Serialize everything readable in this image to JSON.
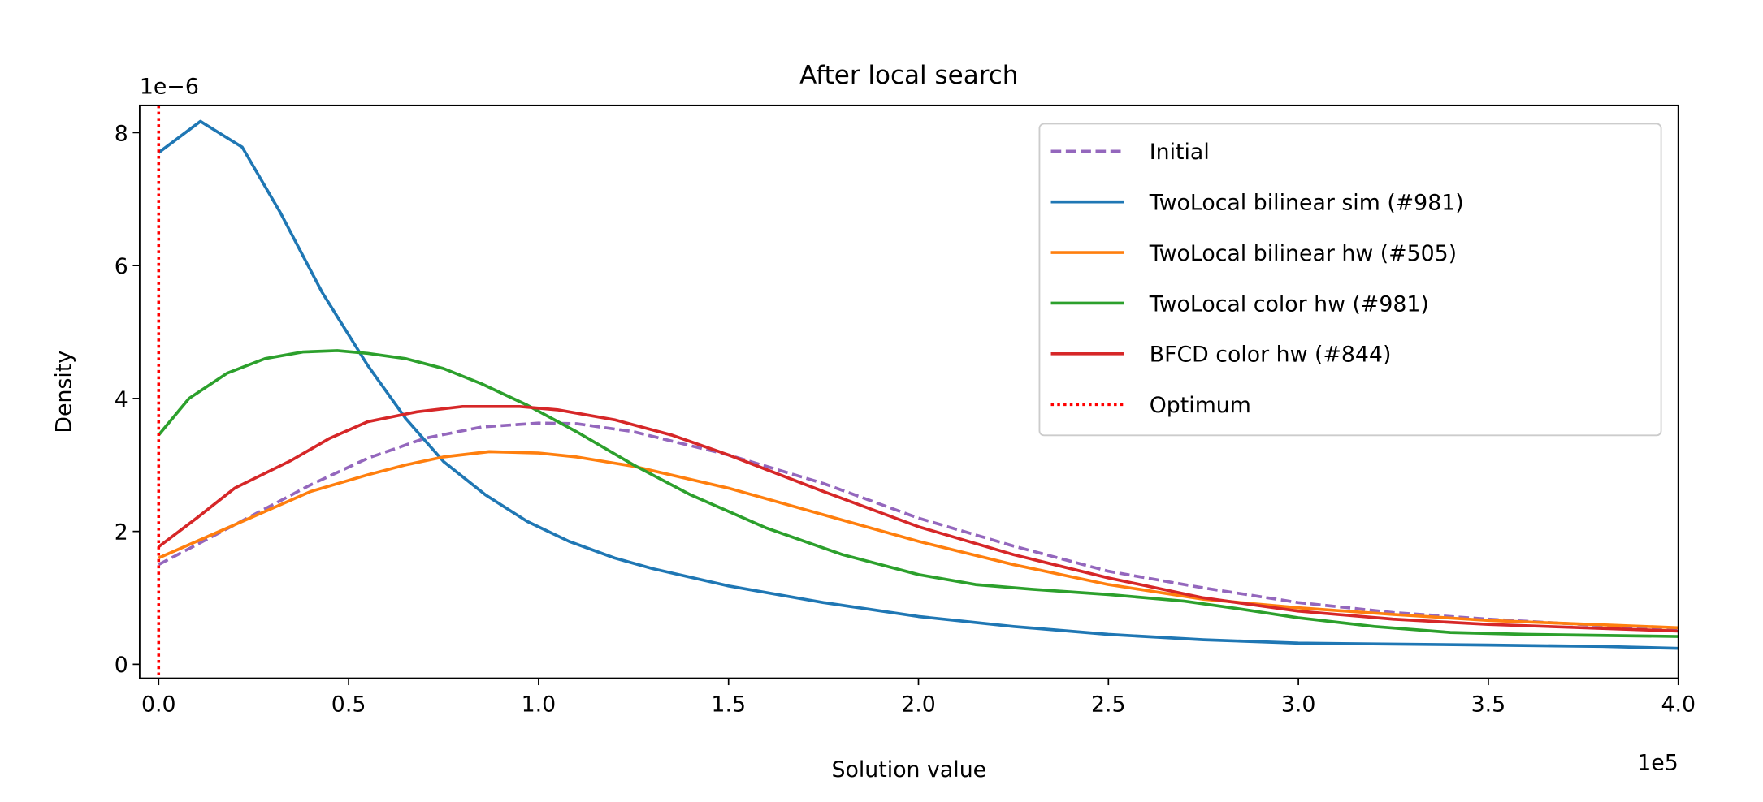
{
  "chart_data": {
    "type": "line",
    "title": "After local search",
    "xlabel": "Solution value",
    "ylabel": "Density",
    "x_offset_label": "1e5",
    "y_offset_label": "1e−6",
    "xlim": [
      -0.05,
      4.0
    ],
    "ylim": [
      -0.21,
      8.41
    ],
    "x_ticks": [
      0.0,
      0.5,
      1.0,
      1.5,
      2.0,
      2.5,
      3.0,
      3.5,
      4.0
    ],
    "x_tick_labels": [
      "0.0",
      "0.5",
      "1.0",
      "1.5",
      "2.0",
      "2.5",
      "3.0",
      "3.5",
      "4.0"
    ],
    "y_ticks": [
      0,
      2,
      4,
      6,
      8
    ],
    "y_tick_labels": [
      "0",
      "2",
      "4",
      "6",
      "8"
    ],
    "grid": false,
    "legend_position": "top-right",
    "series": [
      {
        "name": "Initial",
        "color": "#9467bd",
        "style": "dashed",
        "x": [
          0,
          0.2,
          0.4,
          0.55,
          0.7,
          0.85,
          1.0,
          1.1,
          1.25,
          1.5,
          1.75,
          2.0,
          2.25,
          2.5,
          2.75,
          3.0,
          3.25,
          3.5,
          4.0
        ],
        "y": [
          1.5,
          2.1,
          2.7,
          3.1,
          3.4,
          3.57,
          3.63,
          3.62,
          3.5,
          3.15,
          2.72,
          2.2,
          1.78,
          1.4,
          1.15,
          0.93,
          0.78,
          0.68,
          0.52
        ]
      },
      {
        "name": "TwoLocal bilinear sim (#981)",
        "color": "#1f77b4",
        "style": "solid",
        "x": [
          0,
          0.11,
          0.22,
          0.32,
          0.43,
          0.55,
          0.65,
          0.75,
          0.86,
          0.97,
          1.08,
          1.2,
          1.3,
          1.5,
          1.75,
          2.0,
          2.25,
          2.5,
          2.75,
          3.0,
          3.5,
          3.8,
          4.0
        ],
        "y": [
          7.7,
          8.17,
          7.78,
          6.8,
          5.6,
          4.5,
          3.7,
          3.05,
          2.55,
          2.15,
          1.85,
          1.6,
          1.44,
          1.18,
          0.93,
          0.72,
          0.57,
          0.45,
          0.37,
          0.32,
          0.29,
          0.27,
          0.24
        ]
      },
      {
        "name": "TwoLocal bilinear hw (#505)",
        "color": "#ff7f0e",
        "style": "solid",
        "x": [
          0,
          0.2,
          0.4,
          0.55,
          0.65,
          0.75,
          0.87,
          1.0,
          1.1,
          1.25,
          1.5,
          1.75,
          2.0,
          2.25,
          2.5,
          2.75,
          3.0,
          3.25,
          3.5,
          4.0
        ],
        "y": [
          1.6,
          2.1,
          2.6,
          2.85,
          3.0,
          3.12,
          3.2,
          3.18,
          3.12,
          2.98,
          2.65,
          2.25,
          1.85,
          1.5,
          1.2,
          0.98,
          0.85,
          0.75,
          0.66,
          0.55
        ]
      },
      {
        "name": "TwoLocal color hw (#981)",
        "color": "#2ca02c",
        "style": "solid",
        "x": [
          0,
          0.08,
          0.18,
          0.28,
          0.38,
          0.47,
          0.55,
          0.65,
          0.75,
          0.85,
          0.97,
          1.1,
          1.25,
          1.4,
          1.6,
          1.8,
          2.0,
          2.15,
          2.3,
          2.5,
          2.7,
          2.85,
          3.0,
          3.2,
          3.4,
          3.6,
          4.0
        ],
        "y": [
          3.45,
          4.0,
          4.38,
          4.6,
          4.7,
          4.72,
          4.68,
          4.6,
          4.45,
          4.22,
          3.9,
          3.5,
          3.0,
          2.55,
          2.05,
          1.65,
          1.35,
          1.2,
          1.13,
          1.05,
          0.95,
          0.83,
          0.7,
          0.57,
          0.48,
          0.45,
          0.42
        ]
      },
      {
        "name": "BFCD color hw (#844)",
        "color": "#d62728",
        "style": "solid",
        "x": [
          0,
          0.1,
          0.2,
          0.35,
          0.45,
          0.55,
          0.68,
          0.8,
          0.95,
          1.05,
          1.2,
          1.35,
          1.5,
          1.75,
          2.0,
          2.25,
          2.5,
          2.75,
          3.0,
          3.25,
          3.5,
          4.0
        ],
        "y": [
          1.77,
          2.2,
          2.65,
          3.07,
          3.4,
          3.65,
          3.8,
          3.88,
          3.88,
          3.83,
          3.68,
          3.45,
          3.15,
          2.6,
          2.07,
          1.65,
          1.3,
          1.0,
          0.8,
          0.68,
          0.6,
          0.5
        ]
      },
      {
        "name": "Optimum",
        "color": "#ff0000",
        "style": "dotted",
        "vertical_x": 0
      }
    ]
  }
}
